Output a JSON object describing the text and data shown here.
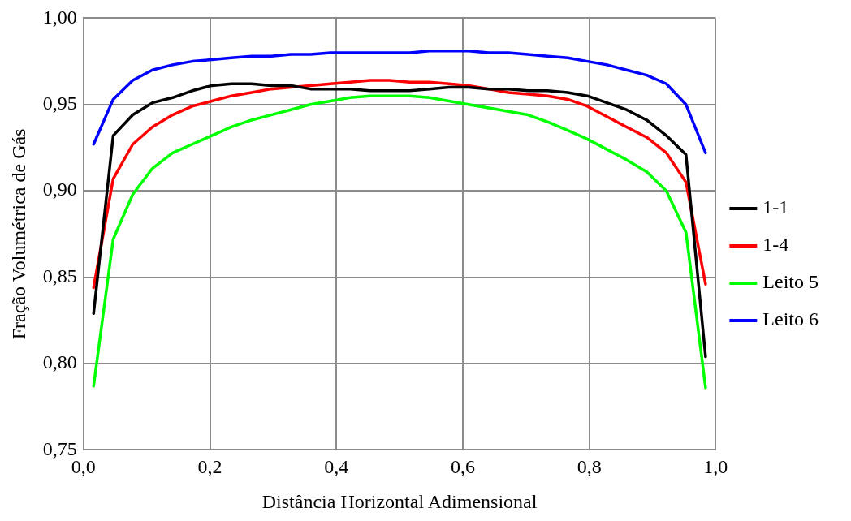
{
  "chart_data": {
    "type": "line",
    "xlabel": "Distância Horizontal Adimensional",
    "ylabel": "Fração Volumétrica de Gás",
    "x": [
      0.016,
      0.047,
      0.078,
      0.109,
      0.141,
      0.172,
      0.203,
      0.234,
      0.266,
      0.297,
      0.328,
      0.359,
      0.391,
      0.422,
      0.453,
      0.484,
      0.516,
      0.547,
      0.578,
      0.609,
      0.641,
      0.672,
      0.703,
      0.734,
      0.766,
      0.797,
      0.828,
      0.859,
      0.891,
      0.922,
      0.953,
      0.984
    ],
    "series": [
      {
        "name": "1-1",
        "color": "#000000",
        "values": [
          0.829,
          0.932,
          0.944,
          0.951,
          0.954,
          0.958,
          0.961,
          0.962,
          0.962,
          0.961,
          0.961,
          0.959,
          0.959,
          0.959,
          0.958,
          0.958,
          0.958,
          0.959,
          0.96,
          0.96,
          0.959,
          0.959,
          0.958,
          0.958,
          0.957,
          0.955,
          0.951,
          0.947,
          0.941,
          0.932,
          0.921,
          0.804
        ]
      },
      {
        "name": "1-4",
        "color": "#ff0000",
        "values": [
          0.844,
          0.907,
          0.927,
          0.937,
          0.944,
          0.949,
          0.952,
          0.955,
          0.957,
          0.959,
          0.96,
          0.961,
          0.962,
          0.963,
          0.964,
          0.964,
          0.963,
          0.963,
          0.962,
          0.961,
          0.959,
          0.957,
          0.956,
          0.955,
          0.953,
          0.949,
          0.943,
          0.937,
          0.931,
          0.922,
          0.905,
          0.846
        ]
      },
      {
        "name": "Leito 5",
        "color": "#00ff00",
        "values": [
          0.787,
          0.872,
          0.898,
          0.913,
          0.922,
          0.927,
          0.932,
          0.937,
          0.941,
          0.944,
          0.947,
          0.95,
          0.952,
          0.954,
          0.955,
          0.955,
          0.955,
          0.954,
          0.952,
          0.95,
          0.948,
          0.946,
          0.944,
          0.94,
          0.935,
          0.93,
          0.924,
          0.918,
          0.911,
          0.9,
          0.876,
          0.786
        ]
      },
      {
        "name": "Leito 6",
        "color": "#0000ff",
        "values": [
          0.927,
          0.953,
          0.964,
          0.97,
          0.973,
          0.975,
          0.976,
          0.977,
          0.978,
          0.978,
          0.979,
          0.979,
          0.98,
          0.98,
          0.98,
          0.98,
          0.98,
          0.981,
          0.981,
          0.981,
          0.98,
          0.98,
          0.979,
          0.978,
          0.977,
          0.975,
          0.973,
          0.97,
          0.967,
          0.962,
          0.95,
          0.922
        ]
      }
    ],
    "xlim": [
      0,
      1
    ],
    "xticks": [
      {
        "value": 0,
        "label": "0,0"
      },
      {
        "value": 0.2,
        "label": "0,2"
      },
      {
        "value": 0.4,
        "label": "0,4"
      },
      {
        "value": 0.6,
        "label": "0,6"
      },
      {
        "value": 0.8,
        "label": "0,8"
      },
      {
        "value": 1,
        "label": "1,0"
      }
    ],
    "ylim": [
      0.75,
      1
    ],
    "yticks": [
      {
        "value": 0.75,
        "label": "0,75"
      },
      {
        "value": 0.8,
        "label": "0,80"
      },
      {
        "value": 0.85,
        "label": "0,85"
      },
      {
        "value": 0.9,
        "label": "0,90"
      },
      {
        "value": 0.95,
        "label": "0,95"
      },
      {
        "value": 1,
        "label": "1,00"
      }
    ],
    "grid": true,
    "legend": "right",
    "marker": "none",
    "line_style": "solid"
  }
}
